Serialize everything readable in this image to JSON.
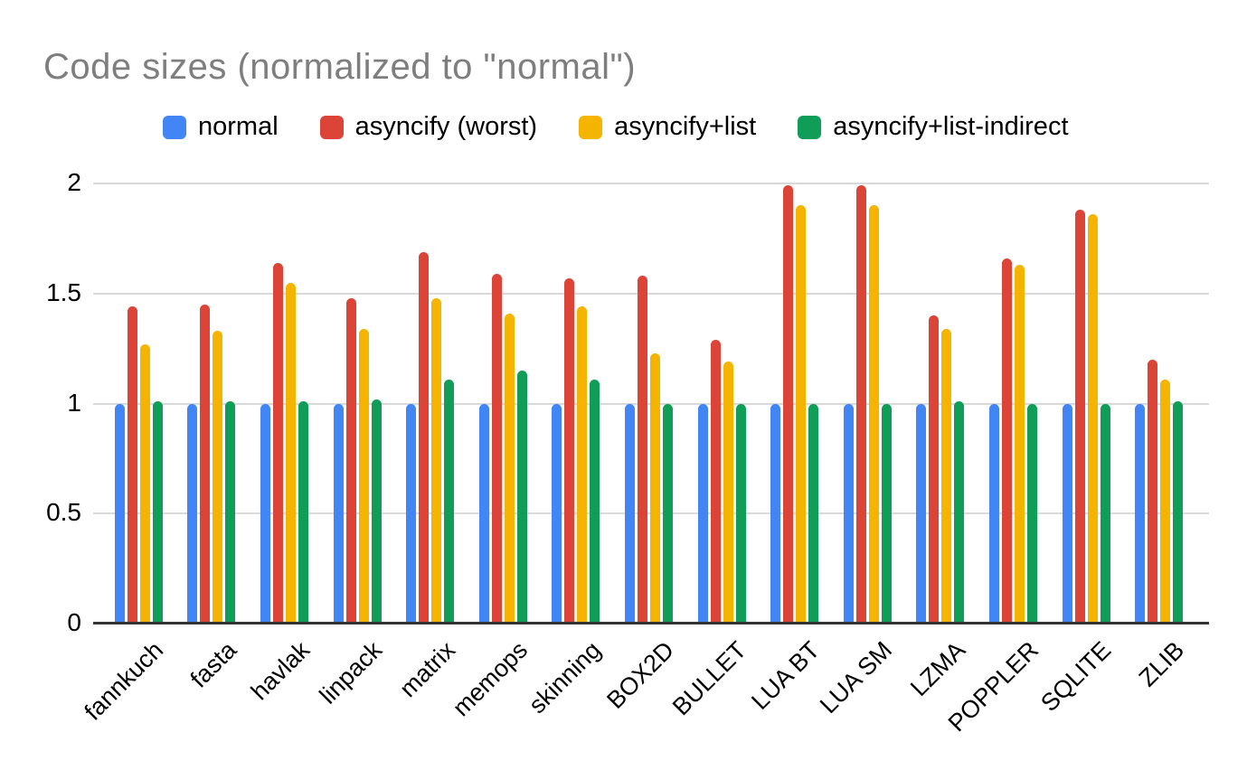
{
  "page": {
    "background": "#ffffff"
  },
  "chart_data": {
    "type": "bar",
    "title": "Code sizes (normalized to \"normal\")",
    "title_color": "#7e7e7e",
    "categories": [
      "fannkuch",
      "fasta",
      "havlak",
      "linpack",
      "matrix",
      "memops",
      "skinning",
      "BOX2D",
      "BULLET",
      "LUA BT",
      "LUA SM",
      "LZMA",
      "POPPLER",
      "SQLITE",
      "ZLIB"
    ],
    "series": [
      {
        "name": "normal",
        "color": "#4285F4",
        "values": [
          1.0,
          1.0,
          1.0,
          1.0,
          1.0,
          1.0,
          1.0,
          1.0,
          1.0,
          1.0,
          1.0,
          1.0,
          1.0,
          1.0,
          1.0
        ]
      },
      {
        "name": "asyncify (worst)",
        "color": "#DB4437",
        "values": [
          1.44,
          1.45,
          1.64,
          1.48,
          1.69,
          1.59,
          1.57,
          1.58,
          1.29,
          1.99,
          1.99,
          1.4,
          1.66,
          1.88,
          1.2
        ]
      },
      {
        "name": "asyncify+list",
        "color": "#F4B400",
        "values": [
          1.27,
          1.33,
          1.55,
          1.34,
          1.48,
          1.41,
          1.44,
          1.23,
          1.19,
          1.9,
          1.9,
          1.34,
          1.63,
          1.86,
          1.11
        ]
      },
      {
        "name": "asyncify+list-indirect",
        "color": "#0F9D58",
        "values": [
          1.01,
          1.01,
          1.01,
          1.02,
          1.11,
          1.15,
          1.11,
          1.0,
          1.0,
          1.0,
          1.0,
          1.01,
          1.0,
          1.0,
          1.01
        ]
      }
    ],
    "xlabel": "",
    "ylabel": "",
    "y_ticks": [
      0,
      0.5,
      1,
      1.5,
      2
    ],
    "ylim": [
      0,
      2.05
    ],
    "grid": true,
    "gridline_color": "#d9d9d9",
    "axis_line_color": "#333333",
    "tick_label_color": "#000000",
    "legend_position": "top"
  }
}
